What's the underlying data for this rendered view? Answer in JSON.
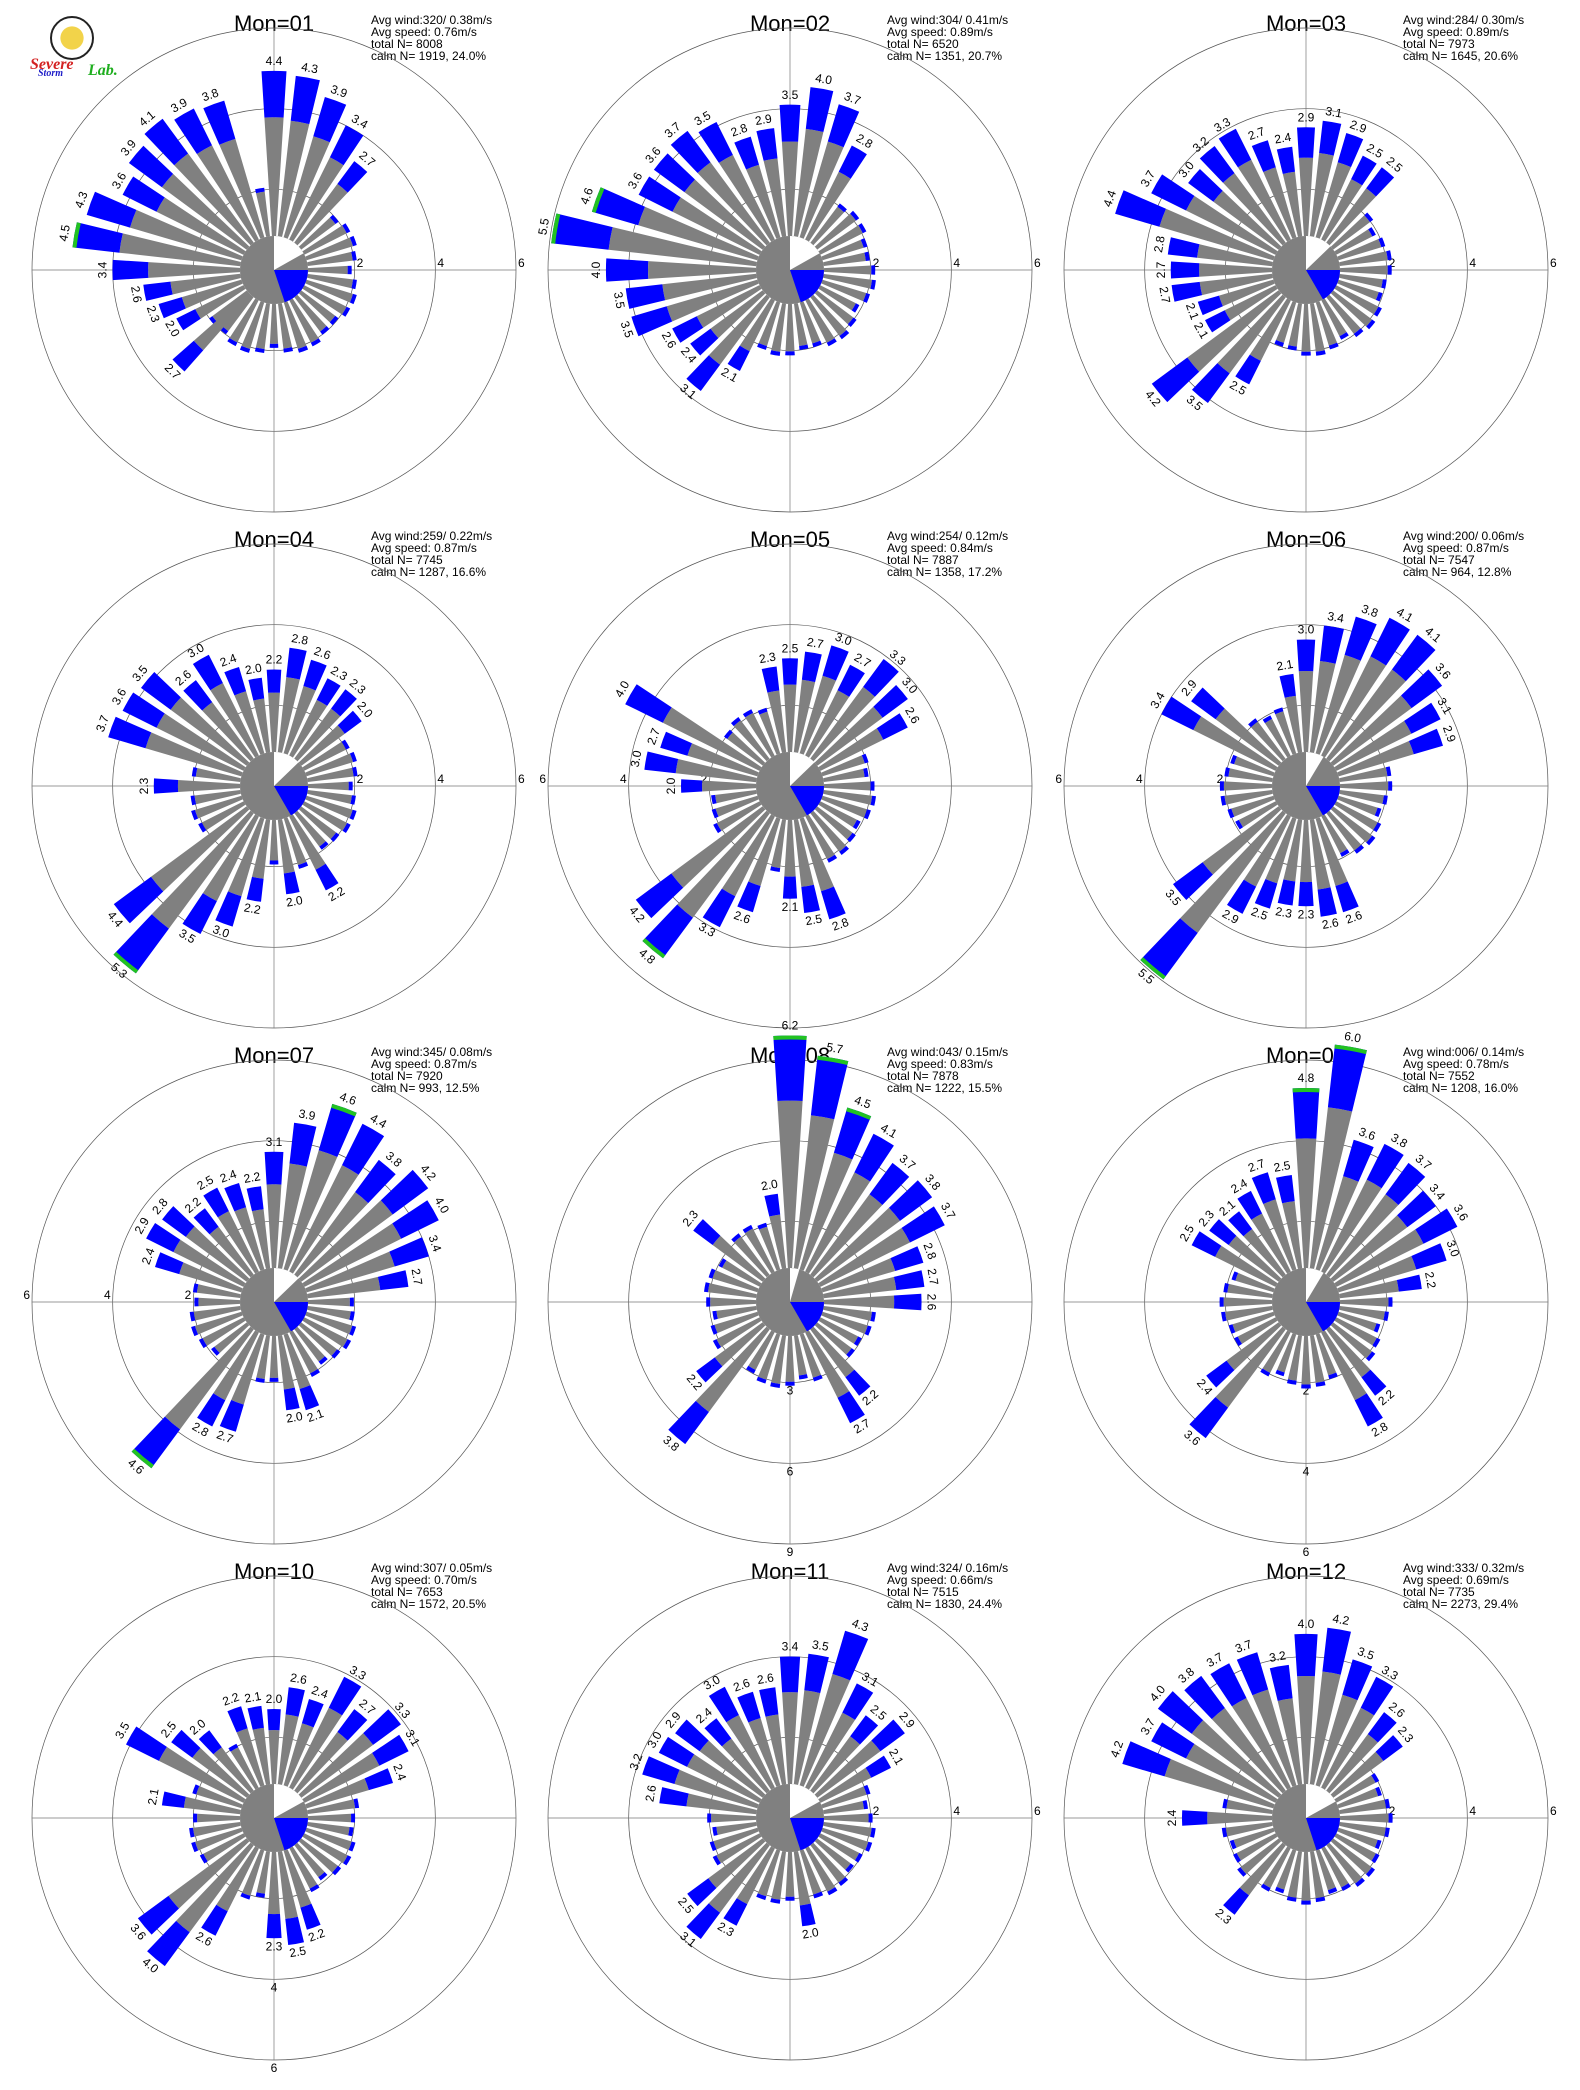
{
  "logo": {
    "text_main": "Severe",
    "text_sub": "Storm",
    "text_lab": "Lab."
  },
  "stats_labels": {
    "avg_wind": "Avg wind:",
    "avg_speed": "Avg speed:",
    "total": "total N=",
    "calm": "calm N="
  },
  "colors": {
    "low_speed": "#808080",
    "mid_speed": "#0000ff",
    "high_speed": "#22c222",
    "calm": "#808080"
  },
  "ring_ticks": [
    "2",
    "4",
    "6"
  ],
  "chart_data": [
    {
      "type": "wind-rose",
      "title": "Mon=01",
      "avg_wind": "320/ 0.38m/s",
      "avg_speed": "0.76m/s",
      "total_n": "8008",
      "calm_n": "1919,  24.0%",
      "calm_sector_deg": [
        0,
        119
      ],
      "ring_label_dir": "E",
      "petals": [
        {
          "dir": 0,
          "value": 4.4
        },
        {
          "dir": 10,
          "value": 4.3
        },
        {
          "dir": 20,
          "value": 3.9
        },
        {
          "dir": 30,
          "value": 3.4
        },
        {
          "dir": 40,
          "value": 2.7
        },
        {
          "dir": 270,
          "value": 3.4
        },
        {
          "dir": 280,
          "value": 4.5
        },
        {
          "dir": 290,
          "value": 4.3
        },
        {
          "dir": 300,
          "value": 3.6
        },
        {
          "dir": 310,
          "value": 3.9
        },
        {
          "dir": 320,
          "value": 4.1
        },
        {
          "dir": 330,
          "value": 3.9
        },
        {
          "dir": 340,
          "value": 3.8
        },
        {
          "dir": 260,
          "value": 2.6
        },
        {
          "dir": 250,
          "value": 2.3
        },
        {
          "dir": 240,
          "value": 2.0
        },
        {
          "dir": 225,
          "value": 2.7
        }
      ]
    },
    {
      "type": "wind-rose",
      "title": "Mon=02",
      "avg_wind": "304/ 0.41m/s",
      "avg_speed": "0.89m/s",
      "total_n": "6520",
      "calm_n": "1351,  20.7%",
      "calm_sector_deg": [
        0,
        119
      ],
      "ring_label_dir": "E",
      "petals": [
        {
          "dir": 350,
          "value": 2.9
        },
        {
          "dir": 0,
          "value": 3.5
        },
        {
          "dir": 10,
          "value": 4.0
        },
        {
          "dir": 20,
          "value": 3.7
        },
        {
          "dir": 30,
          "value": 2.8
        },
        {
          "dir": 340,
          "value": 2.8
        },
        {
          "dir": 330,
          "value": 3.5
        },
        {
          "dir": 320,
          "value": 3.7
        },
        {
          "dir": 310,
          "value": 3.6
        },
        {
          "dir": 300,
          "value": 3.6
        },
        {
          "dir": 290,
          "value": 4.6
        },
        {
          "dir": 280,
          "value": 5.5
        },
        {
          "dir": 270,
          "value": 4.0
        },
        {
          "dir": 260,
          "value": 3.5
        },
        {
          "dir": 250,
          "value": 3.5
        },
        {
          "dir": 240,
          "value": 2.6
        },
        {
          "dir": 230,
          "value": 2.4
        },
        {
          "dir": 220,
          "value": 3.1
        },
        {
          "dir": 210,
          "value": 2.1
        }
      ]
    },
    {
      "type": "wind-rose",
      "title": "Mon=03",
      "avg_wind": "284/ 0.30m/s",
      "avg_speed": "0.89m/s",
      "total_n": "7973",
      "calm_n": "1645,  20.6%",
      "calm_sector_deg": [
        0,
        90
      ],
      "ring_label_dir": "E",
      "petals": [
        {
          "dir": 0,
          "value": 2.9
        },
        {
          "dir": 10,
          "value": 3.1
        },
        {
          "dir": 20,
          "value": 2.9
        },
        {
          "dir": 30,
          "value": 2.5
        },
        {
          "dir": 40,
          "value": 2.5
        },
        {
          "dir": 350,
          "value": 2.4
        },
        {
          "dir": 340,
          "value": 2.7
        },
        {
          "dir": 330,
          "value": 3.3
        },
        {
          "dir": 320,
          "value": 3.2
        },
        {
          "dir": 310,
          "value": 3.0
        },
        {
          "dir": 300,
          "value": 3.7
        },
        {
          "dir": 290,
          "value": 4.4
        },
        {
          "dir": 280,
          "value": 2.8
        },
        {
          "dir": 270,
          "value": 2.7
        },
        {
          "dir": 260,
          "value": 2.7
        },
        {
          "dir": 250,
          "value": 2.1
        },
        {
          "dir": 240,
          "value": 2.1
        },
        {
          "dir": 230,
          "value": 4.2
        },
        {
          "dir": 220,
          "value": 3.5
        },
        {
          "dir": 210,
          "value": 2.5
        }
      ]
    },
    {
      "type": "wind-rose",
      "title": "Mon=04",
      "avg_wind": "259/ 0.22m/s",
      "avg_speed": "0.87m/s",
      "total_n": "7745",
      "calm_n": "1287,  16.6%",
      "calm_sector_deg": [
        0,
        90
      ],
      "ring_label_dir": "E",
      "petals": [
        {
          "dir": 0,
          "value": 2.2
        },
        {
          "dir": 10,
          "value": 2.8
        },
        {
          "dir": 20,
          "value": 2.6
        },
        {
          "dir": 30,
          "value": 2.3
        },
        {
          "dir": 40,
          "value": 2.3
        },
        {
          "dir": 50,
          "value": 2.0
        },
        {
          "dir": 350,
          "value": 2.0
        },
        {
          "dir": 340,
          "value": 2.4
        },
        {
          "dir": 330,
          "value": 3.0
        },
        {
          "dir": 320,
          "value": 2.6
        },
        {
          "dir": 310,
          "value": 3.5
        },
        {
          "dir": 300,
          "value": 3.6
        },
        {
          "dir": 290,
          "value": 3.7
        },
        {
          "dir": 270,
          "value": 2.3
        },
        {
          "dir": 230,
          "value": 4.4
        },
        {
          "dir": 220,
          "value": 5.3
        },
        {
          "dir": 210,
          "value": 3.5
        },
        {
          "dir": 200,
          "value": 3.0
        },
        {
          "dir": 190,
          "value": 2.2
        },
        {
          "dir": 170,
          "value": 2.0
        },
        {
          "dir": 150,
          "value": 2.2
        }
      ]
    },
    {
      "type": "wind-rose",
      "title": "Mon=05",
      "avg_wind": "254/ 0.12m/s",
      "avg_speed": "0.84m/s",
      "total_n": "7887",
      "calm_n": "1358,  17.2%",
      "calm_sector_deg": [
        0,
        90
      ],
      "ring_label_dir": "W",
      "petals": [
        {
          "dir": 0,
          "value": 2.5
        },
        {
          "dir": 10,
          "value": 2.7
        },
        {
          "dir": 20,
          "value": 3.0
        },
        {
          "dir": 30,
          "value": 2.7
        },
        {
          "dir": 40,
          "value": 3.3
        },
        {
          "dir": 50,
          "value": 3.0
        },
        {
          "dir": 60,
          "value": 2.6
        },
        {
          "dir": 350,
          "value": 2.3
        },
        {
          "dir": 300,
          "value": 4.0
        },
        {
          "dir": 290,
          "value": 2.7
        },
        {
          "dir": 280,
          "value": 3.0
        },
        {
          "dir": 270,
          "value": 2.0
        },
        {
          "dir": 230,
          "value": 4.2
        },
        {
          "dir": 220,
          "value": 4.8
        },
        {
          "dir": 210,
          "value": 3.3
        },
        {
          "dir": 200,
          "value": 2.6
        },
        {
          "dir": 180,
          "value": 2.1
        },
        {
          "dir": 170,
          "value": 2.5
        },
        {
          "dir": 160,
          "value": 2.8
        }
      ]
    },
    {
      "type": "wind-rose",
      "title": "Mon=06",
      "avg_wind": "200/ 0.06m/s",
      "avg_speed": "0.87m/s",
      "total_n": "7547",
      "calm_n": "964,  12.8%",
      "calm_sector_deg": [
        0,
        60
      ],
      "ring_label_dir": "W",
      "petals": [
        {
          "dir": 0,
          "value": 3.0
        },
        {
          "dir": 10,
          "value": 3.4
        },
        {
          "dir": 20,
          "value": 3.8
        },
        {
          "dir": 30,
          "value": 4.1
        },
        {
          "dir": 40,
          "value": 4.1
        },
        {
          "dir": 50,
          "value": 3.6
        },
        {
          "dir": 60,
          "value": 3.1
        },
        {
          "dir": 70,
          "value": 2.9
        },
        {
          "dir": 350,
          "value": 2.1
        },
        {
          "dir": 310,
          "value": 2.9
        },
        {
          "dir": 300,
          "value": 3.4
        },
        {
          "dir": 220,
          "value": 5.5
        },
        {
          "dir": 230,
          "value": 3.5
        },
        {
          "dir": 210,
          "value": 2.9
        },
        {
          "dir": 200,
          "value": 2.5
        },
        {
          "dir": 190,
          "value": 2.3
        },
        {
          "dir": 180,
          "value": 2.3
        },
        {
          "dir": 170,
          "value": 2.6
        },
        {
          "dir": 160,
          "value": 2.6
        }
      ]
    },
    {
      "type": "wind-rose",
      "title": "Mon=07",
      "avg_wind": "345/ 0.08m/s",
      "avg_speed": "0.87m/s",
      "total_n": "7920",
      "calm_n": "993,  12.5%",
      "calm_sector_deg": [
        0,
        90
      ],
      "ring_label_dir": "W",
      "petals": [
        {
          "dir": 0,
          "value": 3.1
        },
        {
          "dir": 10,
          "value": 3.9
        },
        {
          "dir": 20,
          "value": 4.6
        },
        {
          "dir": 30,
          "value": 4.4
        },
        {
          "dir": 40,
          "value": 3.8
        },
        {
          "dir": 50,
          "value": 4.2
        },
        {
          "dir": 60,
          "value": 4.0
        },
        {
          "dir": 70,
          "value": 3.4
        },
        {
          "dir": 80,
          "value": 2.7
        },
        {
          "dir": 350,
          "value": 2.2
        },
        {
          "dir": 340,
          "value": 2.4
        },
        {
          "dir": 330,
          "value": 2.5
        },
        {
          "dir": 320,
          "value": 2.2
        },
        {
          "dir": 310,
          "value": 2.8
        },
        {
          "dir": 300,
          "value": 2.9
        },
        {
          "dir": 290,
          "value": 2.4
        },
        {
          "dir": 220,
          "value": 4.6
        },
        {
          "dir": 210,
          "value": 2.8
        },
        {
          "dir": 200,
          "value": 2.7
        },
        {
          "dir": 170,
          "value": 2.0
        },
        {
          "dir": 160,
          "value": 2.1
        }
      ]
    },
    {
      "type": "wind-rose",
      "title": "Mon=08",
      "avg_wind": "043/ 0.15m/s",
      "avg_speed": "0.83m/s",
      "total_n": "7878",
      "calm_n": "1222,  15.5%",
      "calm_sector_deg": [
        0,
        30
      ],
      "ring_label_dir": "S",
      "ring_ticks": [
        "3",
        "6",
        "9"
      ],
      "petals": [
        {
          "dir": 0,
          "value": 6.2
        },
        {
          "dir": 10,
          "value": 5.7
        },
        {
          "dir": 20,
          "value": 4.5
        },
        {
          "dir": 30,
          "value": 4.1
        },
        {
          "dir": 40,
          "value": 3.7
        },
        {
          "dir": 50,
          "value": 3.8
        },
        {
          "dir": 60,
          "value": 3.7
        },
        {
          "dir": 70,
          "value": 2.8
        },
        {
          "dir": 80,
          "value": 2.7
        },
        {
          "dir": 90,
          "value": 2.6
        },
        {
          "dir": 350,
          "value": 2.0
        },
        {
          "dir": 310,
          "value": 2.3
        },
        {
          "dir": 220,
          "value": 3.8
        },
        {
          "dir": 230,
          "value": 2.2
        },
        {
          "dir": 150,
          "value": 2.7
        },
        {
          "dir": 140,
          "value": 2.2
        }
      ]
    },
    {
      "type": "wind-rose",
      "title": "Mon=09",
      "avg_wind": "006/ 0.14m/s",
      "avg_speed": "0.78m/s",
      "total_n": "7552",
      "calm_n": "1208,  16.0%",
      "calm_sector_deg": [
        0,
        60
      ],
      "ring_label_dir": "S",
      "petals": [
        {
          "dir": 0,
          "value": 4.8
        },
        {
          "dir": 10,
          "value": 6.0
        },
        {
          "dir": 20,
          "value": 3.6
        },
        {
          "dir": 30,
          "value": 3.8
        },
        {
          "dir": 40,
          "value": 3.7
        },
        {
          "dir": 50,
          "value": 3.4
        },
        {
          "dir": 60,
          "value": 3.6
        },
        {
          "dir": 70,
          "value": 3.0
        },
        {
          "dir": 80,
          "value": 2.2
        },
        {
          "dir": 350,
          "value": 2.5
        },
        {
          "dir": 340,
          "value": 2.7
        },
        {
          "dir": 330,
          "value": 2.4
        },
        {
          "dir": 320,
          "value": 2.1
        },
        {
          "dir": 310,
          "value": 2.3
        },
        {
          "dir": 300,
          "value": 2.5
        },
        {
          "dir": 220,
          "value": 3.6
        },
        {
          "dir": 230,
          "value": 2.4
        },
        {
          "dir": 150,
          "value": 2.8
        },
        {
          "dir": 140,
          "value": 2.2
        }
      ]
    },
    {
      "type": "wind-rose",
      "title": "Mon=10",
      "avg_wind": "307/ 0.05m/s",
      "avg_speed": "0.70m/s",
      "total_n": "7653",
      "calm_n": "1572,  20.5%",
      "calm_sector_deg": [
        0,
        120
      ],
      "ring_label_dir": "S",
      "petals": [
        {
          "dir": 0,
          "value": 2.0
        },
        {
          "dir": 10,
          "value": 2.6
        },
        {
          "dir": 20,
          "value": 2.4
        },
        {
          "dir": 30,
          "value": 3.3
        },
        {
          "dir": 40,
          "value": 2.7
        },
        {
          "dir": 50,
          "value": 3.3
        },
        {
          "dir": 60,
          "value": 3.1
        },
        {
          "dir": 70,
          "value": 2.4
        },
        {
          "dir": 350,
          "value": 2.1
        },
        {
          "dir": 340,
          "value": 2.2
        },
        {
          "dir": 320,
          "value": 2.0
        },
        {
          "dir": 310,
          "value": 2.5
        },
        {
          "dir": 300,
          "value": 3.5
        },
        {
          "dir": 280,
          "value": 2.1
        },
        {
          "dir": 230,
          "value": 3.6
        },
        {
          "dir": 220,
          "value": 4.0
        },
        {
          "dir": 210,
          "value": 2.6
        },
        {
          "dir": 180,
          "value": 2.3
        },
        {
          "dir": 170,
          "value": 2.5
        },
        {
          "dir": 160,
          "value": 2.2
        }
      ]
    },
    {
      "type": "wind-rose",
      "title": "Mon=11",
      "avg_wind": "324/ 0.16m/s",
      "avg_speed": "0.66m/s",
      "total_n": "7515",
      "calm_n": "1830,  24.4%",
      "calm_sector_deg": [
        0,
        120
      ],
      "ring_label_dir": "E",
      "petals": [
        {
          "dir": 0,
          "value": 3.4
        },
        {
          "dir": 10,
          "value": 3.5
        },
        {
          "dir": 20,
          "value": 4.3
        },
        {
          "dir": 30,
          "value": 3.1
        },
        {
          "dir": 40,
          "value": 2.5
        },
        {
          "dir": 50,
          "value": 2.9
        },
        {
          "dir": 60,
          "value": 2.1
        },
        {
          "dir": 350,
          "value": 2.6
        },
        {
          "dir": 340,
          "value": 2.6
        },
        {
          "dir": 330,
          "value": 3.0
        },
        {
          "dir": 320,
          "value": 2.4
        },
        {
          "dir": 310,
          "value": 2.9
        },
        {
          "dir": 300,
          "value": 3.0
        },
        {
          "dir": 290,
          "value": 3.2
        },
        {
          "dir": 280,
          "value": 2.6
        },
        {
          "dir": 220,
          "value": 3.1
        },
        {
          "dir": 210,
          "value": 2.3
        },
        {
          "dir": 230,
          "value": 2.5
        },
        {
          "dir": 170,
          "value": 2.0
        }
      ]
    },
    {
      "type": "wind-rose",
      "title": "Mon=12",
      "avg_wind": "333/ 0.32m/s",
      "avg_speed": "0.69m/s",
      "total_n": "7735",
      "calm_n": "2273,  29.4%",
      "calm_sector_deg": [
        0,
        120
      ],
      "ring_label_dir": "E",
      "petals": [
        {
          "dir": 0,
          "value": 4.0
        },
        {
          "dir": 10,
          "value": 4.2
        },
        {
          "dir": 20,
          "value": 3.5
        },
        {
          "dir": 30,
          "value": 3.3
        },
        {
          "dir": 40,
          "value": 2.6
        },
        {
          "dir": 50,
          "value": 2.3
        },
        {
          "dir": 350,
          "value": 3.2
        },
        {
          "dir": 340,
          "value": 3.7
        },
        {
          "dir": 330,
          "value": 3.7
        },
        {
          "dir": 320,
          "value": 3.8
        },
        {
          "dir": 310,
          "value": 4.0
        },
        {
          "dir": 300,
          "value": 3.7
        },
        {
          "dir": 290,
          "value": 4.2
        },
        {
          "dir": 270,
          "value": 2.4
        },
        {
          "dir": 220,
          "value": 2.3
        }
      ]
    }
  ]
}
